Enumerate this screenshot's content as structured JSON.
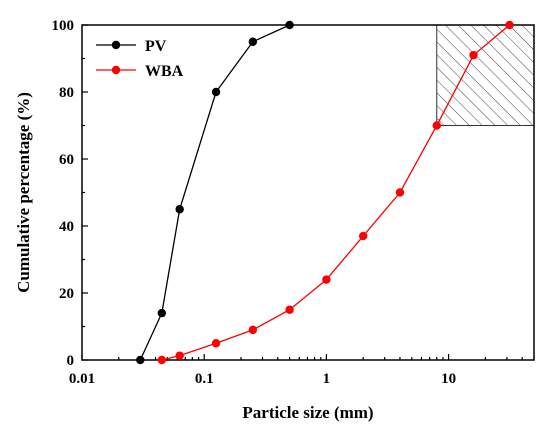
{
  "chart_data": {
    "type": "line",
    "title": "",
    "xlabel": "Particle size (mm)",
    "ylabel": "Cumulative percentage (%)",
    "xscale": "log",
    "xlim": [
      0.01,
      50
    ],
    "ylim": [
      0,
      100
    ],
    "x_ticks": [
      {
        "value": 0.01,
        "label": "0.01"
      },
      {
        "value": 0.1,
        "label": "0.1"
      },
      {
        "value": 1,
        "label": "1"
      },
      {
        "value": 10,
        "label": "10"
      }
    ],
    "y_ticks": [
      {
        "value": 0,
        "label": "0"
      },
      {
        "value": 20,
        "label": "20"
      },
      {
        "value": 40,
        "label": "40"
      },
      {
        "value": 60,
        "label": "60"
      },
      {
        "value": 80,
        "label": "80"
      },
      {
        "value": 100,
        "label": "100"
      }
    ],
    "legend_position": "top-left",
    "grid": false,
    "series": [
      {
        "name": "PV",
        "color": "#000000",
        "marker": "circle",
        "x": [
          0.03,
          0.045,
          0.063,
          0.125,
          0.25,
          0.5
        ],
        "y": [
          0,
          14,
          45,
          80,
          95,
          100
        ]
      },
      {
        "name": "WBA",
        "color": "#ff0000",
        "marker": "circle",
        "x": [
          0.045,
          0.063,
          0.125,
          0.25,
          0.5,
          1,
          2,
          4,
          8,
          16,
          31.5
        ],
        "y": [
          0,
          1.3,
          5,
          9,
          15,
          24,
          37,
          50,
          70,
          91,
          100
        ]
      }
    ],
    "shaded_region": {
      "x": [
        8,
        50
      ],
      "y": [
        70,
        100
      ],
      "pattern": "diagonal-hatch"
    }
  }
}
